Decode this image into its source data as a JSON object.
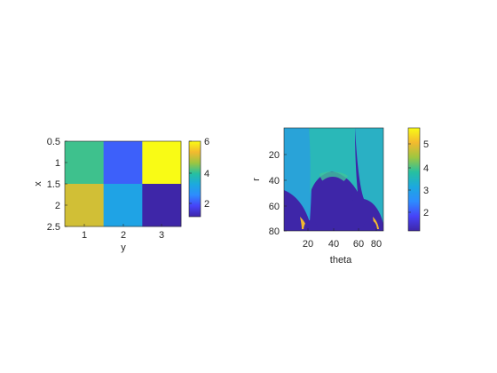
{
  "chart_data": [
    {
      "type": "heatmap",
      "xlabel": "y",
      "ylabel": "x",
      "x_ticks": [
        "1",
        "2",
        "3"
      ],
      "y_ticks": [
        "0.5",
        "1",
        "1.5",
        "2",
        "2.5"
      ],
      "xlim": [
        0.5,
        3.5
      ],
      "ylim": [
        0.5,
        2.5
      ],
      "y_direction": "reverse",
      "values": [
        [
          4,
          2,
          6
        ],
        [
          5,
          3,
          1
        ]
      ],
      "colorbar": {
        "ticks": [
          "2",
          "4",
          "6"
        ],
        "range": [
          1,
          6
        ]
      }
    },
    {
      "type": "heatmap",
      "xlabel": "theta",
      "ylabel": "r",
      "x_ticks": [
        "20",
        "40",
        "60",
        "80"
      ],
      "y_ticks": [
        "20",
        "40",
        "60",
        "80"
      ],
      "xlim": [
        1,
        90
      ],
      "ylim": [
        1,
        80
      ],
      "y_direction": "reverse",
      "colorbar": {
        "ticks": [
          "2",
          "3",
          "4",
          "5"
        ],
        "range": [
          1.3,
          5.8
        ]
      }
    }
  ],
  "colormap": [
    "#3e26a8",
    "#4743f8",
    "#2d8cfe",
    "#1ca9df",
    "#26c0a0",
    "#9ec640",
    "#f3ba2f",
    "#f9fb15"
  ]
}
